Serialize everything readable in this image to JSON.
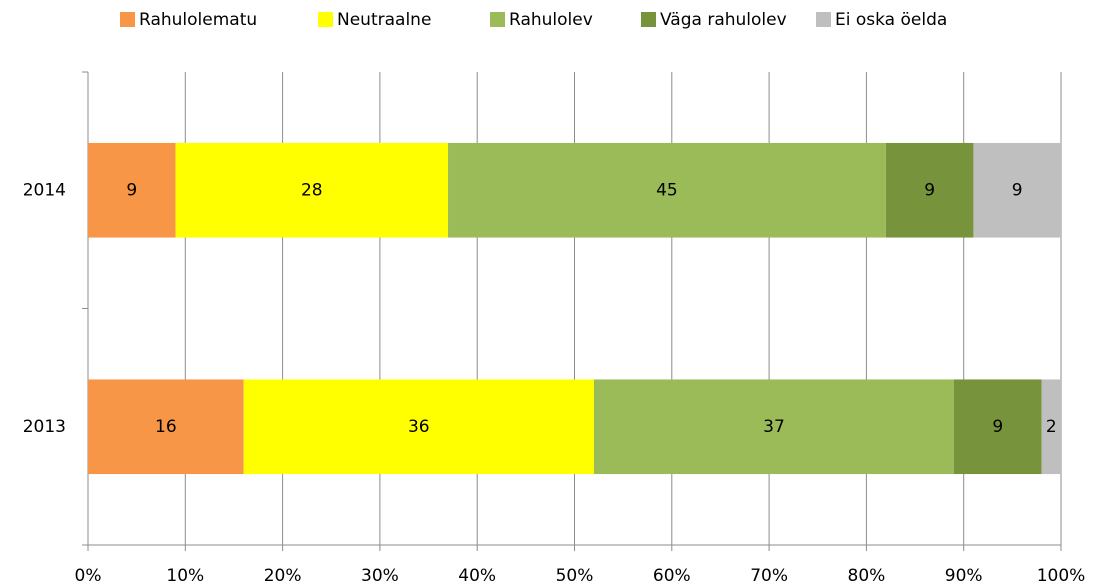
{
  "chart_data": {
    "type": "stacked_barh",
    "categories": [
      "2014",
      "2013"
    ],
    "series": [
      {
        "name": "Rahulolematu",
        "color": "#f79646",
        "values": [
          9,
          16
        ]
      },
      {
        "name": "Neutraalne",
        "color": "#ffff00",
        "values": [
          28,
          36
        ]
      },
      {
        "name": "Rahulolev",
        "color": "#9bbb59",
        "values": [
          45,
          37
        ]
      },
      {
        "name": "Väga rahulolev",
        "color": "#77933c",
        "values": [
          9,
          9
        ]
      },
      {
        "name": "Ei oska öelda",
        "color": "#bfbfbf",
        "values": [
          9,
          2
        ]
      }
    ],
    "xlim": [
      0,
      100
    ],
    "xticks": [
      {
        "value": 0,
        "label": "0%"
      },
      {
        "value": 10,
        "label": "10%"
      },
      {
        "value": 20,
        "label": "20%"
      },
      {
        "value": 30,
        "label": "30%"
      },
      {
        "value": 40,
        "label": "40%"
      },
      {
        "value": 50,
        "label": "50%"
      },
      {
        "value": 60,
        "label": "60%"
      },
      {
        "value": 70,
        "label": "70%"
      },
      {
        "value": 80,
        "label": "80%"
      },
      {
        "value": 90,
        "label": "90%"
      },
      {
        "value": 100,
        "label": "100%"
      }
    ],
    "grid": true,
    "legend": "top"
  }
}
